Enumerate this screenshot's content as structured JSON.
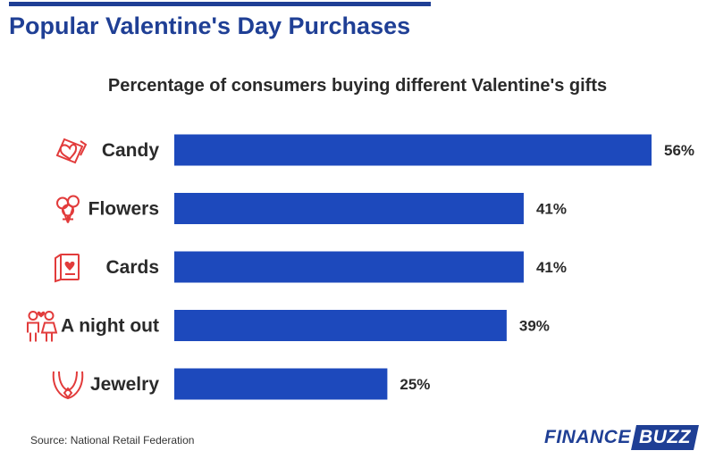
{
  "header": {
    "title": "Popular Valentine's Day Purchases"
  },
  "chart_data": {
    "type": "bar",
    "orientation": "horizontal",
    "title": "Percentage of consumers buying different Valentine's gifts",
    "categories": [
      "Candy",
      "Flowers",
      "Cards",
      "A night out",
      "Jewelry"
    ],
    "values": [
      56,
      41,
      41,
      39,
      25
    ],
    "value_labels": [
      "56%",
      "41%",
      "41%",
      "39%",
      "25%"
    ],
    "icons": [
      "candy-box-icon",
      "flowers-icon",
      "card-icon",
      "couple-icon",
      "necklace-icon"
    ],
    "xlim": [
      0,
      56
    ],
    "grid": false,
    "legend": "none",
    "bar_color": "#1d49bc",
    "icon_color": "#e23b3b"
  },
  "footer": {
    "source": "Source: National Retail Federation",
    "brand_part1": "FINANCE",
    "brand_part2": "BUZZ"
  }
}
